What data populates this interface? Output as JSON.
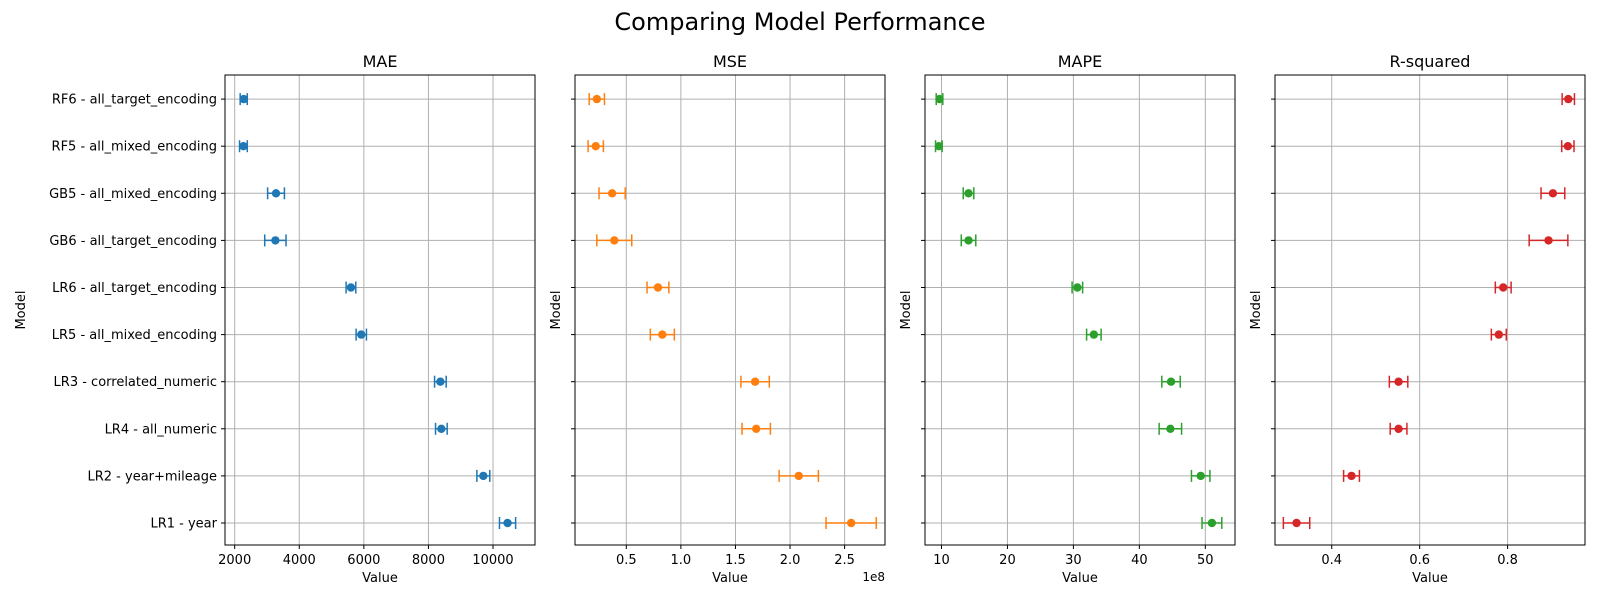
{
  "title": "Comparing Model Performance",
  "chart_data": [
    {
      "type": "scatter",
      "title": "MAE",
      "xlabel": "Value",
      "ylabel": "Model",
      "color": "#1f77b4",
      "xlim": [
        1700,
        11300
      ],
      "xticks": [
        2000,
        4000,
        6000,
        8000,
        10000
      ],
      "xtick_labels": [
        "2000",
        "4000",
        "6000",
        "8000",
        "10000"
      ],
      "offset_label": "",
      "categories": [
        "LR1 - year",
        "LR2 - year+mileage",
        "LR4 - all_numeric",
        "LR3 - correlated_numeric",
        "LR5 - all_mixed_encoding",
        "LR6 - all_target_encoding",
        "GB6 - all_target_encoding",
        "GB5 - all_mixed_encoding",
        "RF5 - all_mixed_encoding",
        "RF6 - all_target_encoding"
      ],
      "values": [
        10450,
        9700,
        8400,
        8370,
        5920,
        5600,
        3260,
        3280,
        2270,
        2280
      ],
      "errors": [
        250,
        200,
        180,
        180,
        160,
        150,
        330,
        260,
        120,
        110
      ]
    },
    {
      "type": "scatter",
      "title": "MSE",
      "xlabel": "Value",
      "ylabel": "Model",
      "color": "#ff7f0e",
      "xlim": [
        0.03,
        2.87
      ],
      "xticks": [
        0.5,
        1.0,
        1.5,
        2.0,
        2.5
      ],
      "xtick_labels": [
        "0.5",
        "1.0",
        "1.5",
        "2.0",
        "2.5"
      ],
      "offset_label": "1e8",
      "categories": [
        "LR1 - year",
        "LR2 - year+mileage",
        "LR4 - all_numeric",
        "LR3 - correlated_numeric",
        "LR5 - all_mixed_encoding",
        "LR6 - all_target_encoding",
        "GB6 - all_target_encoding",
        "GB5 - all_mixed_encoding",
        "RF5 - all_mixed_encoding",
        "RF6 - all_target_encoding"
      ],
      "values": [
        2.56,
        2.08,
        1.69,
        1.68,
        0.83,
        0.79,
        0.39,
        0.37,
        0.22,
        0.23
      ],
      "errors": [
        0.23,
        0.18,
        0.13,
        0.13,
        0.11,
        0.1,
        0.16,
        0.12,
        0.07,
        0.07
      ]
    },
    {
      "type": "scatter",
      "title": "MAPE",
      "xlabel": "Value",
      "ylabel": "Model",
      "color": "#2ca02c",
      "xlim": [
        7.5,
        54.5
      ],
      "xticks": [
        10,
        20,
        30,
        40,
        50
      ],
      "xtick_labels": [
        "10",
        "20",
        "30",
        "40",
        "50"
      ],
      "offset_label": "",
      "categories": [
        "LR1 - year",
        "LR2 - year+mileage",
        "LR4 - all_numeric",
        "LR3 - correlated_numeric",
        "LR5 - all_mixed_encoding",
        "LR6 - all_target_encoding",
        "GB6 - all_target_encoding",
        "GB5 - all_mixed_encoding",
        "RF5 - all_mixed_encoding",
        "RF6 - all_target_encoding"
      ],
      "values": [
        51.0,
        49.3,
        44.7,
        44.8,
        33.1,
        30.6,
        14.1,
        14.1,
        9.6,
        9.7
      ],
      "errors": [
        1.5,
        1.4,
        1.7,
        1.4,
        1.1,
        0.8,
        1.1,
        0.8,
        0.5,
        0.5
      ]
    },
    {
      "type": "scatter",
      "title": "R-squared",
      "xlabel": "Value",
      "ylabel": "Model",
      "color": "#d62728",
      "xlim": [
        0.271,
        0.976
      ],
      "xticks": [
        0.4,
        0.6,
        0.8
      ],
      "xtick_labels": [
        "0.4",
        "0.6",
        "0.8"
      ],
      "offset_label": "",
      "categories": [
        "LR1 - year",
        "LR2 - year+mileage",
        "LR4 - all_numeric",
        "LR3 - correlated_numeric",
        "LR5 - all_mixed_encoding",
        "LR6 - all_target_encoding",
        "GB6 - all_target_encoding",
        "GB5 - all_mixed_encoding",
        "RF5 - all_mixed_encoding",
        "RF6 - all_target_encoding"
      ],
      "values": [
        0.32,
        0.445,
        0.552,
        0.552,
        0.78,
        0.79,
        0.893,
        0.903,
        0.937,
        0.938
      ],
      "errors": [
        0.03,
        0.018,
        0.019,
        0.021,
        0.017,
        0.018,
        0.044,
        0.027,
        0.014,
        0.014
      ]
    }
  ]
}
